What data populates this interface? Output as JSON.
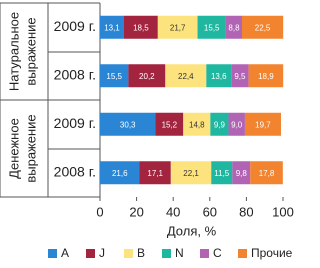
{
  "chart_data": {
    "type": "stacked-bar-horizontal",
    "categories": [
      "2009 г.",
      "2008 г.",
      "2009 г.",
      "2008 г."
    ],
    "group_labels": [
      [
        "Натуральное",
        "выражение"
      ],
      [
        "Денежное",
        "выражение"
      ]
    ],
    "series": [
      {
        "name": "A",
        "color": "#2a86d4",
        "values": [
          13.1,
          15.5,
          30.3,
          21.6
        ],
        "value_labels": [
          "13,1",
          "15,5",
          "30,3",
          "21,6"
        ]
      },
      {
        "name": "J",
        "color": "#a3243f",
        "values": [
          18.5,
          20.2,
          15.2,
          17.1
        ],
        "value_labels": [
          "18,5",
          "20,2",
          "15,2",
          "17,1"
        ]
      },
      {
        "name": "B",
        "color": "#fde37e",
        "values": [
          21.7,
          22.4,
          14.8,
          22.1
        ],
        "value_labels": [
          "21,7",
          "22,4",
          "14,8",
          "22,1"
        ]
      },
      {
        "name": "N",
        "color": "#1fb79f",
        "values": [
          15.5,
          13.6,
          9.9,
          11.5
        ],
        "value_labels": [
          "15,5",
          "13,6",
          "9,9",
          "11,5"
        ]
      },
      {
        "name": "C",
        "color": "#b163b4",
        "values": [
          8.8,
          9.5,
          9.0,
          9.8
        ],
        "value_labels": [
          "8,8",
          "9,5",
          "9,0",
          "9,8"
        ]
      },
      {
        "name": "Прочие",
        "color": "#f2842f",
        "values": [
          22.5,
          18.9,
          19.7,
          17.8
        ],
        "value_labels": [
          "22,5",
          "18,9",
          "19,7",
          "17,8"
        ]
      }
    ],
    "xlim": [
      0,
      100
    ],
    "xticks": [
      0,
      20,
      40,
      60,
      80,
      100
    ],
    "xlabel": "Доля, %"
  }
}
